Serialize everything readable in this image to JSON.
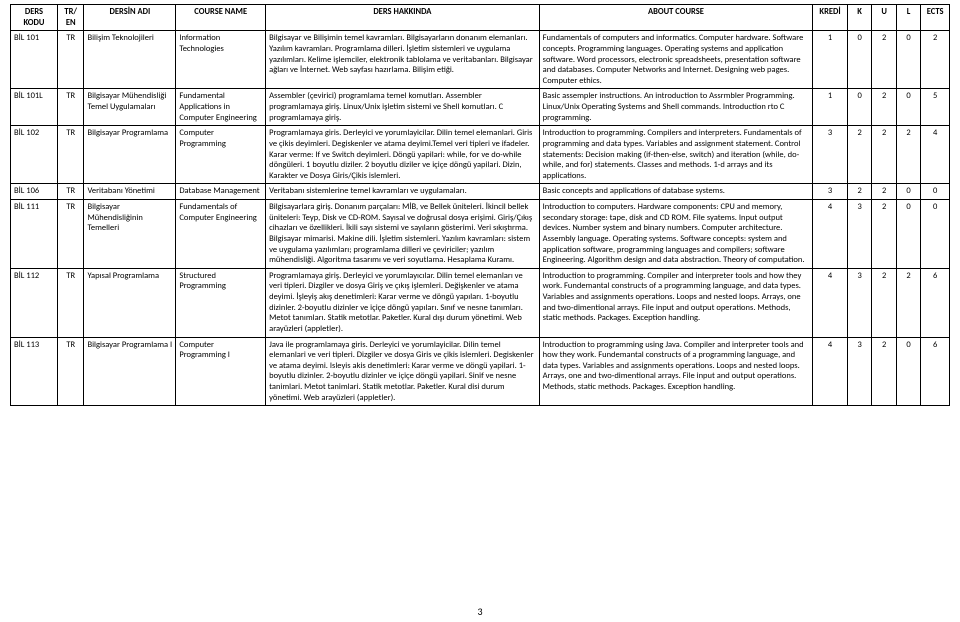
{
  "columns": {
    "ders_kodu": "DERS KODU",
    "tr_en": "TR/ EN",
    "dersin_adi": "DERSİN ADI",
    "course_name": "COURSE NAME",
    "ders_hakkinda": "DERS HAKKINDA",
    "about_course": "ABOUT COURSE",
    "kredi": "KREDİ",
    "k": "K",
    "u": "U",
    "l": "L",
    "ects": "ECTS"
  },
  "page_number": "3",
  "rows": [
    {
      "code": "BİL 101",
      "tren": "TR",
      "dersin_adi": "Bilişim Teknolojileri",
      "course_name": "Information Technologies",
      "hakkinda": "Bilgisayar ve Bilişimin temel kavramları. Bilgisayarların donanım elemanları. Yazılım kavramları. Programlama dilleri. İşletim sistemleri ve uygulama yazılımları. Kelime işlemciler, elektronik tablolama ve veritabanları. Bilgisayar ağları ve İnternet. Web sayfası hazırlama. Bilişim etiği.",
      "about": "Fundamentals of computers and informatics. Computer hardware. Software concepts. Programming languages. Operating systems and application software. Word processors, electronic spreadsheets, presentation software and databases. Computer Networks and Internet. Designing web pages. Computer ethics.",
      "kredi": "1",
      "k": "0",
      "u": "2",
      "l": "0",
      "ects": "2"
    },
    {
      "code": "BİL 101L",
      "tren": "TR",
      "dersin_adi": "Bilgisayar Mühendisliği Temel Uygulamaları",
      "course_name": "Fundamental Applications in Computer Engineering",
      "hakkinda": "Assembler (çevirici) programlama temel komutları. Assembler programlamaya giriş. Linux/Unix işletim sistemi ve Shell komutları. C programlamaya giriş.",
      "about": "Basic assempler instructions. An introduction to Assrmbler Programming. Linux/Unix Operating Systems and Shell commands. Introduction rto C programming.",
      "kredi": "1",
      "k": "0",
      "u": "2",
      "l": "0",
      "ects": "5"
    },
    {
      "code": "BİL 102",
      "tren": "TR",
      "dersin_adi": "Bilgisayar Programlama",
      "course_name": "Computer Programming",
      "hakkinda": "Programlamaya giris. Derleyici ve yorumlayicilar. Dilin temel elemanlari. Giris ve çikis deyimleri. Degiskenler ve atama deyimi.Temel veri tipleri ve ifadeler. Karar verme: If ve Switch deyimleri. Döngü yapilari: while, for ve do-while döngüleri. 1 boyutlu diziler. 2 boyutlu diziler ve içiçe döngü yapilari. Dizin, Karakter ve Dosya Giris/Çikis islemleri.",
      "about": "Introduction to programming. Compilers and interpreters. Fundamentals of programming and data types. Variables and assignment statement. Control statements: Decision making (if-then-else, switch) and iteration (while, do-while, and for) statements. Classes and methods. 1-d arrays and its applications.",
      "kredi": "3",
      "k": "2",
      "u": "2",
      "l": "2",
      "ects": "4"
    },
    {
      "code": "BİL 106",
      "tren": "TR",
      "dersin_adi": "Veritabanı Yönetimi",
      "course_name": "Database Management",
      "hakkinda": "Veritabanı sistemlerine temel kavramları ve uygulamaları.",
      "about": "Basic concepts and applications of database systems.",
      "kredi": "3",
      "k": "2",
      "u": "2",
      "l": "0",
      "ects": "0"
    },
    {
      "code": "BİL 111",
      "tren": "TR",
      "dersin_adi": "Bilgisayar Mühendisliğinin Temelleri",
      "course_name": "Fundamentals of Computer Engineering",
      "hakkinda": "Bilgisayarlara giriş. Donanım parçaları: MİB, ve Bellek üniteleri. İkincil bellek üniteleri: Teyp, Disk ve CD-ROM. Sayısal ve doğrusal dosya erişimi. Giriş/Çıkış cihazları ve özellikleri. İkili sayı sistemi ve sayıların gösterimi. Veri sıkıştırma. Bilgisayar mimarisi. Makine dili. İşletim sistemleri. Yazılım kavramları: sistem ve uygulama yazılımları; programlama dilleri ve çeviriciler; yazılım mühendisliği. Algoritma tasarımı ve veri soyutlama. Hesaplama Kuramı.",
      "about": "Introduction to computers. Hardware components: CPU and memory, secondary storage: tape, disk and CD ROM. File syatems. Input output devices. Number system and binary numbers. Computer architecture. Assembly language. Operating systems. Software concepts: system and application software, programming languages and compilers; software Engineering. Algorithm design and data abstraction. Theory of computation.",
      "kredi": "4",
      "k": "3",
      "u": "2",
      "l": "0",
      "ects": "0"
    },
    {
      "code": "BİL 112",
      "tren": "TR",
      "dersin_adi": "Yapısal Programlama",
      "course_name": "Structured Programming",
      "hakkinda": "Programlamaya giriş. Derleyici ve yorumlayıcılar. Dilin temel elemanları ve veri tipleri. Dizgiler ve dosya Giriş ve çıkış işlemleri. Değişkenler ve atama deyimi. İşleyiş akış denetimleri: Karar verme ve döngü yapıları. 1-boyutlu dizinler. 2-boyutlu dizinler ve içiçe döngü yapıları. Sınıf ve nesne tanımları. Metot tanımları. Statik metotlar. Paketler. Kural dışı durum yönetimi. Web arayüzleri (appletler).",
      "about": "Introduction to programming. Compiler and interpreter tools and how they work. Fundemantal constructs of a programming language, and data types. Variables and assignments operations. Loops and nested loops. Arrays, one and two-dimentional arrays. File input and output operations. Methods, static methods. Packages. Exception handling.",
      "kredi": "4",
      "k": "3",
      "u": "2",
      "l": "2",
      "ects": "6"
    },
    {
      "code": "BİL 113",
      "tren": "TR",
      "dersin_adi": "Bilgisayar Programlama I",
      "course_name": "Computer Programming I",
      "hakkinda": "Java ile programlamaya giris. Derleyici ve yorumlayicilar. Dilin temel elemanlari ve veri tipleri. Dizgiler ve dosya Giris ve çikis islemleri. Degiskenler ve atama deyimi. Isleyis akis denetimleri: Karar verme ve döngü yapilari. 1-boyutlu dizinler. 2-boyutlu dizinler ve içiçe döngü yapilari. Sinif ve nesne tanimlari. Metot tanimlari. Statik metotlar. Paketler. Kural disi durum yönetimi. Web arayüzleri (appletler).",
      "about": "Introduction to programming using Java. Compiler and interpreter tools and how they work. Fundemantal constructs of a programming language, and data types. Variables and assignments operations. Loops and nested loops. Arrays, one and two-dimentional arrays. File input and output operations. Methods, static methods. Packages. Exception handling.",
      "kredi": "4",
      "k": "3",
      "u": "2",
      "l": "0",
      "ects": "6"
    }
  ]
}
